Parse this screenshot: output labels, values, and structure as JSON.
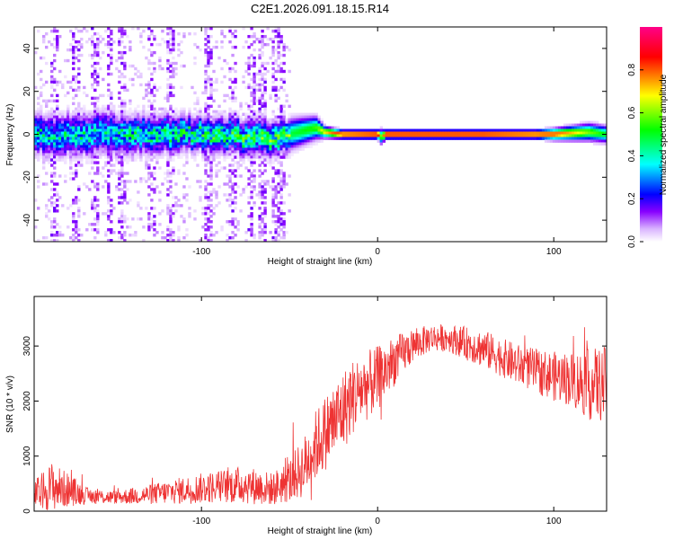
{
  "title": "C2E1.2026.091.18.15.R14",
  "chart_data": [
    {
      "type": "heatmap",
      "title": "C2E1.2026.091.18.15.R14",
      "xlabel": "Height of straight line (km)",
      "ylabel": "Frequency (Hz)",
      "xlim": [
        -195,
        130
      ],
      "ylim": [
        -50,
        50
      ],
      "xticks": [
        -100,
        0,
        100
      ],
      "yticks": [
        -40,
        -20,
        0,
        20,
        40
      ],
      "xtick_labels": [
        "-100",
        "0",
        "100"
      ],
      "ytick_labels": [
        "-40",
        "-20",
        "0",
        "20",
        "40"
      ],
      "colorbar": {
        "label": "Normalized spectral amplitude",
        "range": [
          0,
          1
        ],
        "ticks": [
          0.0,
          0.2,
          0.4,
          0.6,
          0.8
        ],
        "tick_labels": [
          "0.0",
          "0.2",
          "0.4",
          "0.6",
          "0.8"
        ],
        "colormap": [
          "#ffffff",
          "#d9b3ff",
          "#8800ff",
          "#0000ff",
          "#00ffff",
          "#00ff00",
          "#ffff00",
          "#ff0000",
          "#ff0088"
        ]
      },
      "ridge": {
        "description_points_x": [
          -195,
          -150,
          -100,
          -60,
          -45,
          -35,
          -30,
          -20,
          0,
          2,
          5,
          20,
          60,
          90,
          100,
          120,
          130
        ],
        "center_freq": [
          0,
          0,
          0,
          -2,
          1,
          3,
          1,
          0,
          0,
          -1,
          0,
          0,
          0,
          0,
          0,
          1,
          0
        ],
        "width_hz": [
          7,
          7,
          6,
          6,
          5,
          4,
          2,
          1.5,
          1.5,
          2.5,
          1.5,
          1.5,
          1.5,
          1.5,
          2,
          3,
          3
        ],
        "peak_amplitude": [
          0.35,
          0.35,
          0.4,
          0.45,
          0.5,
          0.55,
          0.7,
          0.9,
          0.95,
          0.6,
          0.95,
          0.95,
          0.95,
          0.9,
          0.85,
          0.6,
          0.5
        ]
      },
      "noise_region_x": [
        -195,
        -50
      ]
    },
    {
      "type": "line",
      "title": "",
      "xlabel": "Height of straight line (km)",
      "ylabel": "SNR (10 * v/v)",
      "xlim": [
        -195,
        130
      ],
      "ylim": [
        0,
        3900
      ],
      "xticks": [
        -100,
        0,
        100
      ],
      "yticks": [
        0,
        1000,
        2000,
        3000
      ],
      "xtick_labels": [
        "-100",
        "0",
        "100"
      ],
      "ytick_labels": [
        "0",
        "1000",
        "2000",
        "3000"
      ],
      "line_color": "#ee3333",
      "envelope": {
        "x": [
          -195,
          -185,
          -175,
          -165,
          -150,
          -130,
          -110,
          -90,
          -75,
          -60,
          -50,
          -42,
          -35,
          -28,
          -20,
          -15,
          -10,
          0,
          10,
          20,
          30,
          40,
          50,
          60,
          70,
          80,
          90,
          100,
          110,
          120,
          130
        ],
        "mean": [
          300,
          450,
          380,
          280,
          250,
          300,
          380,
          450,
          480,
          400,
          550,
          800,
          1200,
          1500,
          1800,
          2050,
          2200,
          2400,
          2750,
          3000,
          3150,
          3150,
          3050,
          2950,
          2800,
          2650,
          2550,
          2450,
          2400,
          2300,
          2300
        ],
        "spread": [
          250,
          450,
          300,
          150,
          120,
          180,
          250,
          300,
          350,
          300,
          400,
          550,
          650,
          700,
          750,
          700,
          650,
          600,
          450,
          300,
          250,
          250,
          300,
          350,
          350,
          380,
          400,
          450,
          500,
          650,
          700
        ]
      }
    }
  ]
}
